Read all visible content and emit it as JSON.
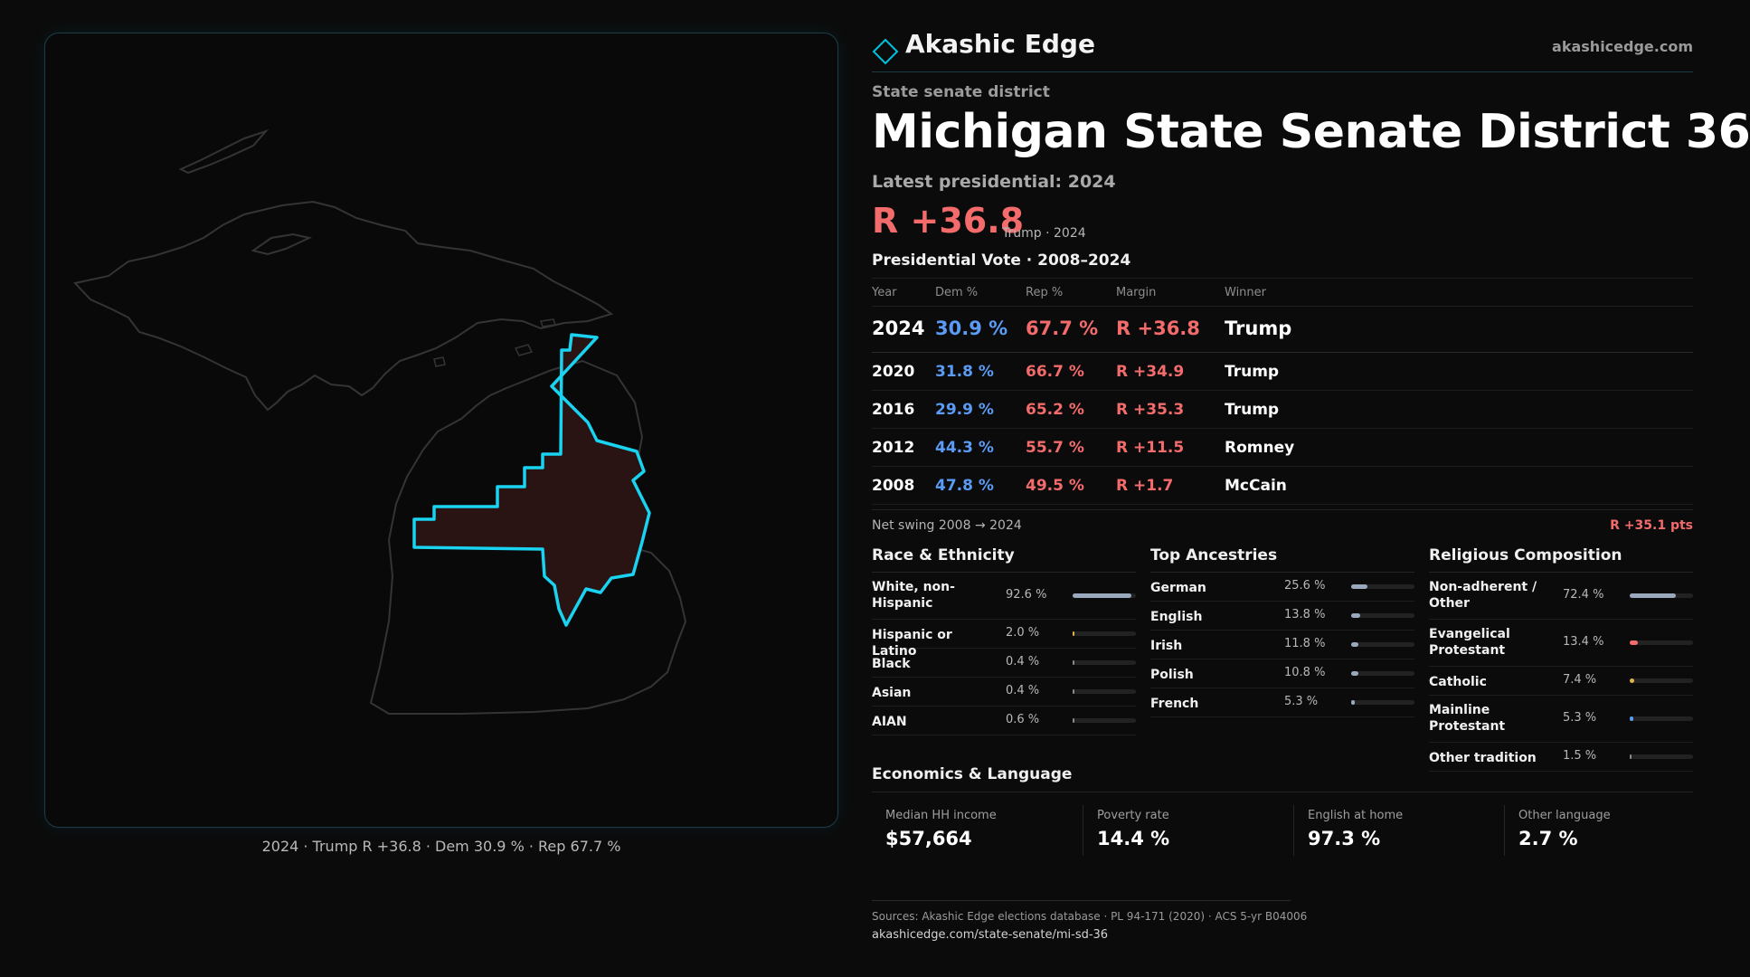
{
  "brand": {
    "name": "Akashic Edge",
    "url": "akashicedge.com",
    "logo_icon": "diamond-outline-icon",
    "accent": "#00c2e0"
  },
  "header": {
    "kicker": "State senate district",
    "title": "Michigan State Senate District 36",
    "latest_label": "Latest presidential: 2024",
    "margin": "R +36.8",
    "margin_note": "Trump · 2024"
  },
  "map": {
    "caption": "2024 · Trump R +36.8 · Dem 30.9 % · Rep 67.7 %",
    "district_outline_color": "#19d3f0",
    "district_fill_color": "#2a1313",
    "state_outline_color": "#3a3a3a"
  },
  "presidential": {
    "title": "Presidential Vote · 2008–2024",
    "headers": {
      "year": "Year",
      "dem": "Dem %",
      "rep": "Rep %",
      "margin": "Margin",
      "winner": "Winner"
    },
    "rows": [
      {
        "year": "2024",
        "dem": "30.9 %",
        "rep": "67.7 %",
        "margin": "R +36.8",
        "winner": "Trump"
      },
      {
        "year": "2020",
        "dem": "31.8 %",
        "rep": "66.7 %",
        "margin": "R +34.9",
        "winner": "Trump"
      },
      {
        "year": "2016",
        "dem": "29.9 %",
        "rep": "65.2 %",
        "margin": "R +35.3",
        "winner": "Trump"
      },
      {
        "year": "2012",
        "dem": "44.3 %",
        "rep": "55.7 %",
        "margin": "R +11.5",
        "winner": "Romney"
      },
      {
        "year": "2008",
        "dem": "47.8 %",
        "rep": "49.5 %",
        "margin": "R +1.7",
        "winner": "McCain"
      }
    ],
    "dem_color": "#5b9bf5",
    "rep_color": "#f36b6b"
  },
  "swing": {
    "label": "Net swing 2008 → 2024",
    "value": "R +35.1 pts"
  },
  "race": {
    "title": "Race & Ethnicity",
    "items": [
      {
        "label": "White, non-Hispanic",
        "value": "92.6 %",
        "pct": 92.6,
        "color": "#9aa8bd"
      },
      {
        "label": "Hispanic or Latino",
        "value": "2.0 %",
        "pct": 2.0,
        "color": "#e0b04a"
      },
      {
        "label": "Black",
        "value": "0.4 %",
        "pct": 0.4,
        "color": "#8a8a8a"
      },
      {
        "label": "Asian",
        "value": "0.4 %",
        "pct": 0.4,
        "color": "#8a8a8a"
      },
      {
        "label": "AIAN",
        "value": "0.6 %",
        "pct": 0.6,
        "color": "#8a8a8a"
      }
    ]
  },
  "ancestry": {
    "title": "Top Ancestries",
    "items": [
      {
        "label": "German",
        "value": "25.6 %",
        "pct": 25.6,
        "color": "#9aa8bd"
      },
      {
        "label": "English",
        "value": "13.8 %",
        "pct": 13.8,
        "color": "#9aa8bd"
      },
      {
        "label": "Irish",
        "value": "11.8 %",
        "pct": 11.8,
        "color": "#9aa8bd"
      },
      {
        "label": "Polish",
        "value": "10.8 %",
        "pct": 10.8,
        "color": "#9aa8bd"
      },
      {
        "label": "French",
        "value": "5.3 %",
        "pct": 5.3,
        "color": "#9aa8bd"
      }
    ]
  },
  "religion": {
    "title": "Religious Composition",
    "items": [
      {
        "label": "Non-adherent / Other",
        "value": "72.4 %",
        "pct": 72.4,
        "color": "#9aa8bd"
      },
      {
        "label": "Evangelical Protestant",
        "value": "13.4 %",
        "pct": 13.4,
        "color": "#f36b6b"
      },
      {
        "label": "Catholic",
        "value": "7.4 %",
        "pct": 7.4,
        "color": "#e0b04a"
      },
      {
        "label": "Mainline Protestant",
        "value": "5.3 %",
        "pct": 5.3,
        "color": "#5b9bf5"
      },
      {
        "label": "Other tradition",
        "value": "1.5 %",
        "pct": 1.5,
        "color": "#8a8a8a"
      }
    ]
  },
  "economics": {
    "title": "Economics & Language",
    "items": [
      {
        "label": "Median HH income",
        "value": "$57,664"
      },
      {
        "label": "Poverty rate",
        "value": "14.4 %"
      },
      {
        "label": "English at home",
        "value": "97.3 %"
      },
      {
        "label": "Other language",
        "value": "2.7 %"
      }
    ]
  },
  "sources": {
    "text": "Sources: Akashic Edge elections database · PL 94-171 (2020) · ACS 5-yr B04006",
    "url": "akashicedge.com/state-senate/mi-sd-36"
  }
}
